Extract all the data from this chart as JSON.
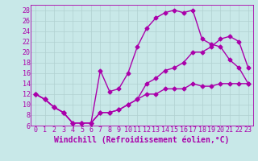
{
  "title": "",
  "xlabel": "Windchill (Refroidissement éolien,°C)",
  "background_color": "#c8e8e8",
  "grid_color": "#b0d0d0",
  "line_color": "#aa00aa",
  "xlim": [
    -0.5,
    23.5
  ],
  "ylim": [
    6,
    29
  ],
  "xticks": [
    0,
    1,
    2,
    3,
    4,
    5,
    6,
    7,
    8,
    9,
    10,
    11,
    12,
    13,
    14,
    15,
    16,
    17,
    18,
    19,
    20,
    21,
    22,
    23
  ],
  "yticks": [
    6,
    8,
    10,
    12,
    14,
    16,
    18,
    20,
    22,
    24,
    26,
    28
  ],
  "line1_x": [
    0,
    1,
    2,
    3,
    4,
    5,
    6,
    7,
    8,
    9,
    10,
    11,
    12,
    13,
    14,
    15,
    16,
    17,
    18,
    19,
    20,
    21,
    22,
    23
  ],
  "line1_y": [
    12,
    11,
    9.5,
    8.5,
    6.5,
    6.5,
    6.5,
    8.5,
    8.5,
    9,
    10,
    11,
    12,
    12,
    13,
    13,
    13,
    14,
    13.5,
    13.5,
    14,
    14,
    14,
    14
  ],
  "line2_x": [
    0,
    1,
    2,
    3,
    4,
    5,
    6,
    7,
    8,
    9,
    10,
    11,
    12,
    13,
    14,
    15,
    16,
    17,
    18,
    19,
    20,
    21,
    22,
    23
  ],
  "line2_y": [
    12,
    11,
    9.5,
    8.5,
    6.5,
    6.5,
    6.5,
    16.5,
    12.5,
    13,
    16,
    21,
    24.5,
    26.5,
    27.5,
    28,
    27.5,
    28,
    22.5,
    21.5,
    21,
    18.5,
    17,
    14
  ],
  "line3_x": [
    0,
    1,
    2,
    3,
    4,
    5,
    6,
    7,
    8,
    9,
    10,
    11,
    12,
    13,
    14,
    15,
    16,
    17,
    18,
    19,
    20,
    21,
    22,
    23
  ],
  "line3_y": [
    12,
    11,
    9.5,
    8.5,
    6.5,
    6.5,
    6.5,
    8.5,
    8.5,
    9,
    10,
    11,
    14,
    15,
    16.5,
    17,
    18,
    20,
    20,
    21,
    22.5,
    23,
    22,
    17
  ],
  "markersize": 2.5,
  "linewidth": 1.0,
  "xlabel_fontsize": 7,
  "tick_fontsize": 6
}
